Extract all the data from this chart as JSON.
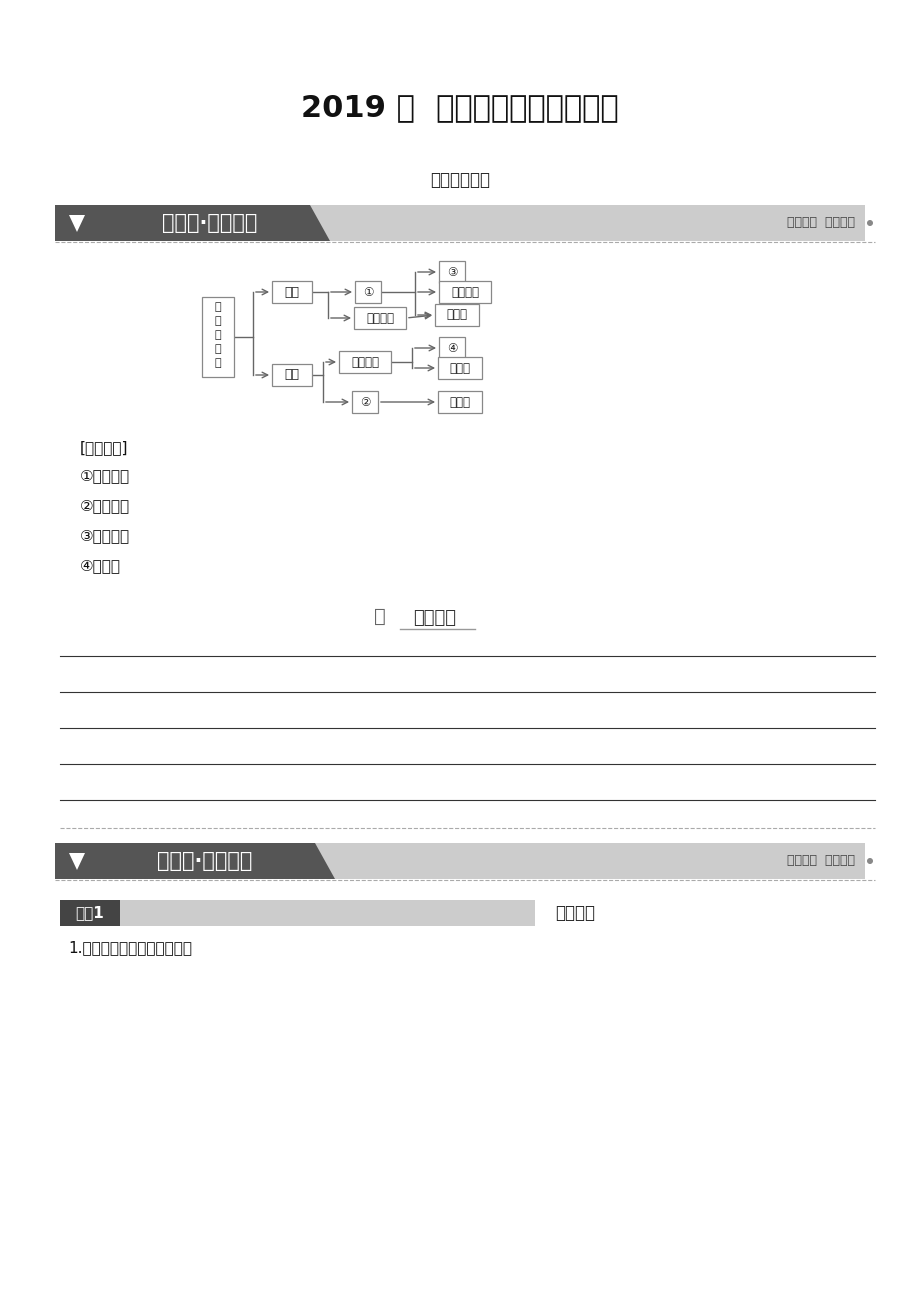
{
  "title": "2019 届  北师大版数学精品资料",
  "subtitle": "章末分层突破",
  "section1_title": "巩固层·知识整合",
  "section1_right": "知识体系  反馈教材",
  "section2_title": "提升层·能力强化",
  "section2_right": "深化整合  探究提升",
  "jiaodui_label": "[自我校对]",
  "answers": [
    "①合情推理",
    "②间接证明",
    "③归纳推理",
    "④综合法"
  ],
  "xuesi_label": "学思心得",
  "topic_label": "主题1",
  "topic_title": "合情推理",
  "topic_content": "1.归纳推理的特点及一般步骤",
  "bg_color": "#ffffff",
  "text_color": "#000000",
  "banner1_dark": "#555555",
  "banner1_light": "#cccccc",
  "banner1_text": "#ffffff",
  "banner1_right_text": "#444444",
  "dashed_color": "#aaaaaa",
  "box_edge": "#777777",
  "box_text": "#333333",
  "line_color": "#666666",
  "section2_dark": "#555555",
  "section2_light": "#cccccc",
  "topic_dark": "#444444",
  "topic_light": "#cccccc"
}
